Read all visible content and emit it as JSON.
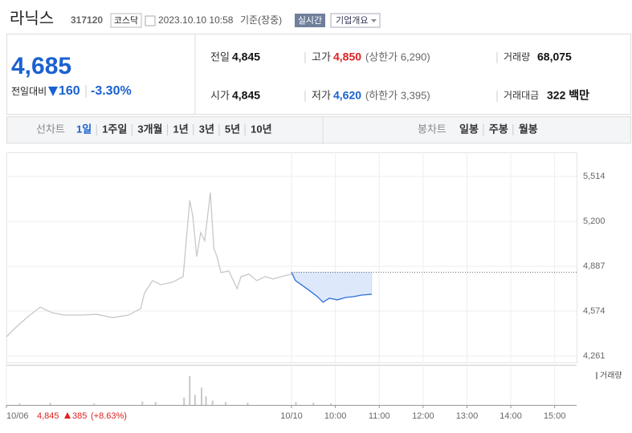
{
  "header": {
    "name": "라닉스",
    "code": "317120",
    "market": "코스닥",
    "datetime": "2023.10.10 10:58",
    "basis": "기준(장중)",
    "realtime": "실시간",
    "company": "기업개요"
  },
  "quote": {
    "price": "4,685",
    "change_label": "전일대비",
    "change": "160",
    "change_pct": "-3.30%"
  },
  "table": {
    "rows": [
      [
        {
          "label": "전일",
          "value": "4,845"
        },
        {
          "label": "고가",
          "value": "4,850",
          "note": "(상한가 6,290)"
        },
        {
          "label": "거래량",
          "value": "68,075"
        }
      ],
      [
        {
          "label": "시가",
          "value": "4,845"
        },
        {
          "label": "저가",
          "value": "4,620",
          "note": "(하한가 3,395)"
        },
        {
          "label": "거래대금",
          "value": "322 백만"
        }
      ]
    ]
  },
  "tabs": {
    "line_label": "선차트",
    "line_periods": [
      "1일",
      "1주일",
      "3개월",
      "1년",
      "3년",
      "5년",
      "10년"
    ],
    "candle_label": "봉차트",
    "candle_periods": [
      "일봉",
      "주봉",
      "월봉"
    ]
  },
  "chart_data": {
    "type": "line",
    "xlim": [
      0,
      13
    ],
    "ylim": [
      4216,
      5682
    ],
    "yticks": [
      {
        "value": 5514,
        "label": "5,514"
      },
      {
        "value": 5200,
        "label": "5,200"
      },
      {
        "value": 4887,
        "label": "4,887"
      },
      {
        "value": 4574,
        "label": "4,574"
      },
      {
        "value": 4261,
        "label": "4,261"
      }
    ],
    "xticks": [
      {
        "value": 0,
        "label": "10/06"
      },
      {
        "value": 6.5,
        "label": "10/10"
      },
      {
        "value": 7.5,
        "label": "10:00"
      },
      {
        "value": 8.5,
        "label": "11:00"
      },
      {
        "value": 9.5,
        "label": "12:00"
      },
      {
        "value": 10.5,
        "label": "13:00"
      },
      {
        "value": 11.5,
        "label": "14:00"
      },
      {
        "value": 12.5,
        "label": "15:00"
      }
    ],
    "reference_line": 4845,
    "series": [
      {
        "color": "#c8c8c8",
        "x": [
          0,
          0.22,
          0.49,
          0.77,
          1.04,
          1.32,
          1.68,
          2.05,
          2.42,
          2.78,
          3.06,
          3.15,
          3.33,
          3.52,
          3.79,
          4.03,
          4.1,
          4.18,
          4.25,
          4.34,
          4.43,
          4.52,
          4.65,
          4.73,
          4.8,
          4.89,
          5.07,
          5.26,
          5.35,
          5.53,
          5.71,
          5.9,
          6.08,
          6.26,
          6.5
        ],
        "values": [
          4395,
          4462,
          4535,
          4602,
          4563,
          4546,
          4546,
          4552,
          4529,
          4546,
          4591,
          4703,
          4787,
          4759,
          4776,
          4815,
          5066,
          5346,
          5234,
          4955,
          5122,
          5066,
          5402,
          5011,
          4955,
          4843,
          4854,
          4731,
          4815,
          4832,
          4787,
          4815,
          4798,
          4815,
          4832
        ]
      },
      {
        "color": "#2f6fd6",
        "fill": "#dde9fb",
        "x": [
          6.5,
          6.59,
          6.72,
          6.9,
          7.09,
          7.22,
          7.36,
          7.55,
          7.73,
          7.91,
          8.1,
          8.33
        ],
        "values": [
          4845,
          4787,
          4759,
          4720,
          4675,
          4636,
          4664,
          4653,
          4669,
          4675,
          4686,
          4692
        ]
      }
    ],
    "volume": {
      "label": "거래량",
      "color": "#c8c8c8",
      "lim": [
        0,
        50
      ],
      "x": [
        0.3,
        1.0,
        2.0,
        3.1,
        3.4,
        4.05,
        4.18,
        4.3,
        4.45,
        4.55,
        4.7,
        5.0,
        5.5,
        6.6,
        7.0,
        7.4
      ],
      "values": [
        2,
        3,
        2,
        5,
        4,
        10,
        40,
        14,
        24,
        12,
        6,
        4,
        3,
        4,
        3,
        2
      ]
    },
    "footer": {
      "date": "10/06",
      "close": "4,845",
      "change": "385",
      "change_pct": "(+8.63%)"
    }
  }
}
